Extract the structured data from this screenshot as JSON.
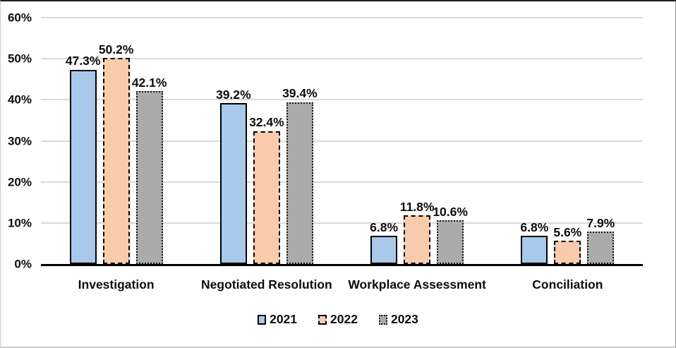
{
  "chart_data": {
    "type": "bar",
    "title": "",
    "categories": [
      "Investigation",
      "Negotiated Resolution",
      "Workplace Assessment",
      "Conciliation"
    ],
    "series": [
      {
        "name": "2021",
        "values": [
          47.3,
          39.2,
          6.8,
          6.8
        ],
        "labels": [
          "47.3%",
          "39.2%",
          "6.8%",
          "6.8%"
        ],
        "fill": "#A9C9EA",
        "border_color": "#000000",
        "border_style": "solid"
      },
      {
        "name": "2022",
        "values": [
          50.2,
          32.4,
          11.8,
          5.6
        ],
        "labels": [
          "50.2%",
          "32.4%",
          "11.8%",
          "5.6%"
        ],
        "fill": "#F8CBAD",
        "border_color": "#000000",
        "border_style": "dashed"
      },
      {
        "name": "2023",
        "values": [
          42.1,
          39.4,
          10.6,
          7.9
        ],
        "labels": [
          "42.1%",
          "39.4%",
          "10.6%",
          "7.9%"
        ],
        "fill": "#ABABAB",
        "border_color": "#1a1a1a",
        "border_style": "dotted"
      }
    ],
    "y_axis": {
      "min": 0,
      "max": 60,
      "ticks": [
        {
          "value": 60,
          "label": "60%"
        },
        {
          "value": 50,
          "label": "50%"
        },
        {
          "value": 40,
          "label": "40%"
        },
        {
          "value": 30,
          "label": "30%"
        },
        {
          "value": 20,
          "label": "20%"
        },
        {
          "value": 10,
          "label": "10%"
        },
        {
          "value": 0,
          "label": "0%"
        }
      ]
    },
    "grid": true,
    "gridline_color": "#D9D9D9",
    "axis_color": "#000000",
    "legend_position": "bottom"
  }
}
